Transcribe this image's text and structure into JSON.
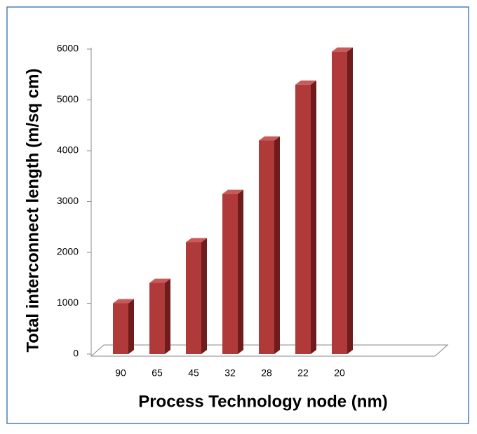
{
  "chart_data": {
    "type": "bar3d",
    "x_label": "Process Technology node (nm)",
    "y_label": "Total interconnect length (m/sq cm)",
    "categories": [
      "90",
      "65",
      "45",
      "32",
      "28",
      "22",
      "20"
    ],
    "values": [
      1000,
      1400,
      2200,
      3150,
      4200,
      5300,
      5950
    ],
    "color": "#b03a3a",
    "ylim": [
      0,
      6000
    ],
    "yticks": [
      0,
      1000,
      2000,
      3000,
      4000,
      5000,
      6000
    ],
    "grid": false
  }
}
